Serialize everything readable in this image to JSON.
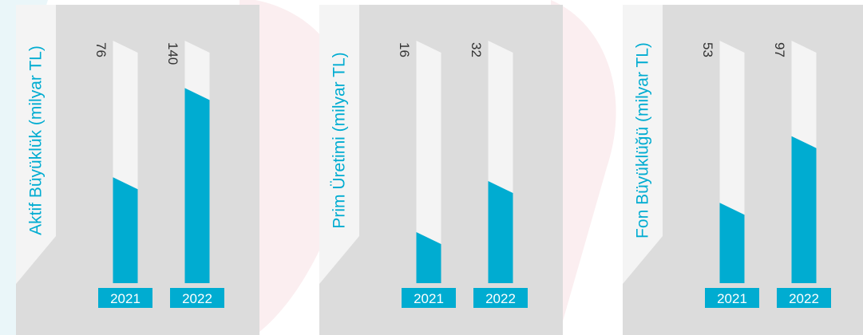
{
  "colors": {
    "accent": "#00acd1",
    "panel_bg": "#dcdcdc",
    "track": "#f4f4f4",
    "title_text": "#00acd1",
    "value_text": "#333333",
    "year_text": "#ffffff"
  },
  "chart_data": [
    {
      "type": "bar",
      "title": "Aktif Büyüklük (milyar TL)",
      "categories": [
        "2021",
        "2022"
      ],
      "values": [
        76,
        140
      ],
      "ylim": [
        0,
        174
      ],
      "grid": false,
      "orientation": "vertical"
    },
    {
      "type": "bar",
      "title": "Prim Üretimi (milyar TL)",
      "categories": [
        "2021",
        "2022"
      ],
      "values": [
        16,
        32
      ],
      "ylim": [
        0,
        76
      ],
      "grid": false,
      "orientation": "vertical"
    },
    {
      "type": "bar",
      "title": "Fon Büyüklüğü (milyar TL)",
      "categories": [
        "2021",
        "2022"
      ],
      "values": [
        53,
        97
      ],
      "ylim": [
        0,
        160
      ],
      "grid": false,
      "orientation": "vertical"
    }
  ]
}
